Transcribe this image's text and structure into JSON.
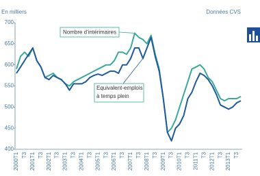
{
  "chart_data": {
    "type": "line",
    "y_label": "En milliers",
    "note": "Données CVS",
    "annotations": [
      [
        "Nombre d'intérimaires"
      ],
      [
        "Equivalent-emplois",
        "à temps plein"
      ]
    ],
    "categories": [
      "2000T1",
      null,
      "T3",
      null,
      "2001T1",
      null,
      "T3",
      null,
      "2002T1",
      null,
      "T3",
      null,
      "2003T1",
      null,
      "T3",
      null,
      "2004T1",
      null,
      "T3",
      null,
      "2005T1",
      null,
      "T3",
      null,
      "2006T1",
      null,
      "T3",
      null,
      "2007T1",
      null,
      "T3",
      null,
      "2008T1",
      null,
      "T3",
      null,
      "2009T1",
      null,
      "T3",
      null,
      "2010T1",
      null,
      "T3",
      null,
      "2011T1",
      null,
      "T3",
      null,
      "2012T1",
      null,
      "T3",
      null,
      "2013T1",
      null,
      "T3",
      null
    ],
    "series": [
      {
        "name": "Nombre d'intérimaires",
        "color": "#3aa99a",
        "values": [
          590,
          620,
          630,
          620,
          640,
          610,
          595,
          570,
          575,
          580,
          570,
          565,
          555,
          550,
          560,
          565,
          570,
          575,
          580,
          585,
          590,
          595,
          600,
          600,
          610,
          630,
          630,
          625,
          640,
          675,
          665,
          660,
          650,
          670,
          625,
          590,
          520,
          440,
          450,
          470,
          500,
          530,
          560,
          590,
          595,
          600,
          590,
          570,
          560,
          540,
          520,
          515,
          520,
          520,
          520,
          525
        ]
      },
      {
        "name": "Equivalent-emplois à temps plein",
        "color": "#1f5a9a",
        "values": [
          580,
          595,
          610,
          625,
          640,
          610,
          595,
          570,
          565,
          575,
          570,
          565,
          555,
          540,
          555,
          555,
          555,
          560,
          570,
          575,
          578,
          575,
          580,
          585,
          585,
          580,
          600,
          600,
          615,
          640,
          640,
          615,
          640,
          665,
          620,
          585,
          520,
          440,
          420,
          450,
          460,
          480,
          520,
          535,
          560,
          580,
          575,
          565,
          550,
          530,
          505,
          500,
          495,
          500,
          510,
          515
        ]
      }
    ],
    "ylim": [
      400,
      700
    ],
    "yticks": [
      400,
      450,
      500,
      550,
      600,
      650,
      700
    ],
    "grid": false
  }
}
